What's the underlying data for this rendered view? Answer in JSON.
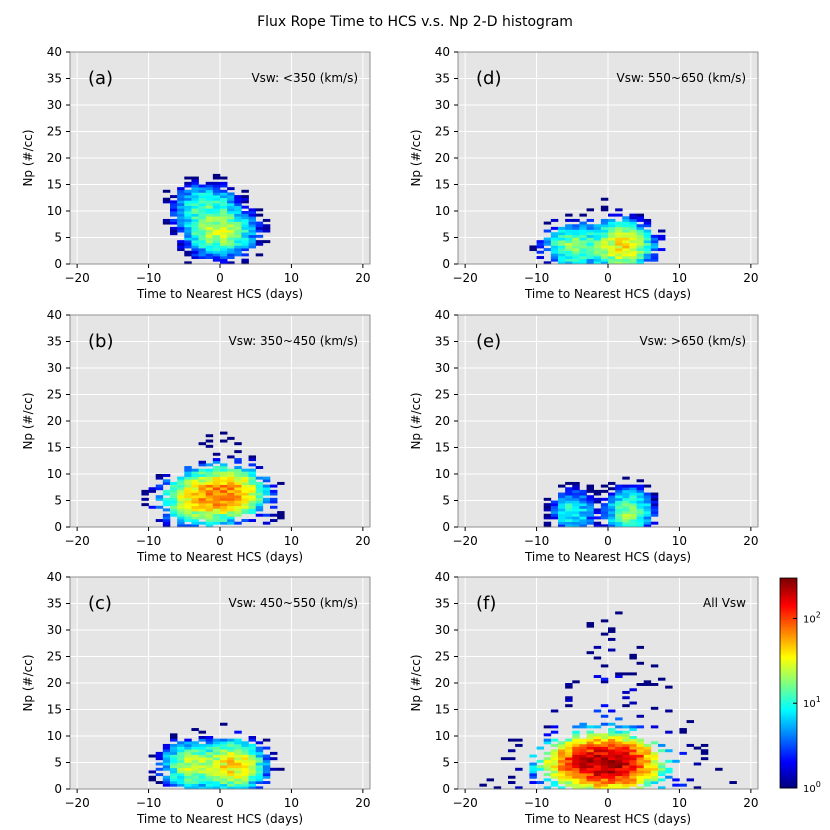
{
  "title": "Flux Rope Time to HCS v.s. Np 2-D histogram",
  "chart_data": [
    {
      "type": "heatmap",
      "panel_label": "(a)",
      "annotation": "Vsw: <350 (km/s)",
      "xlabel": "Time to Nearest HCS (days)",
      "ylabel": "Np (#/cc)",
      "xlim": [
        -21,
        21
      ],
      "ylim": [
        0,
        40
      ],
      "xticks": [
        -20,
        -10,
        0,
        10,
        20
      ],
      "yticks": [
        0,
        5,
        10,
        15,
        20,
        25,
        30,
        35,
        40
      ],
      "grid": true,
      "x_spread_days": 6,
      "hotspots": [
        {
          "x": 0,
          "y": 6,
          "peak_count": 25
        },
        {
          "x": -2,
          "y": 11,
          "peak_count": 12
        }
      ]
    },
    {
      "type": "heatmap",
      "panel_label": "(d)",
      "annotation": "Vsw: 550~650 (km/s)",
      "xlabel": "Time to Nearest HCS (days)",
      "ylabel": "Np (#/cc)",
      "xlim": [
        -21,
        21
      ],
      "ylim": [
        0,
        40
      ],
      "xticks": [
        -20,
        -10,
        0,
        10,
        20
      ],
      "yticks": [
        0,
        5,
        10,
        15,
        20,
        25,
        30,
        35,
        40
      ],
      "grid": true,
      "x_spread_days": 5,
      "hotspots": [
        {
          "x": 2,
          "y": 3.5,
          "peak_count": 40
        },
        {
          "x": -5,
          "y": 3.5,
          "peak_count": 18
        }
      ]
    },
    {
      "type": "heatmap",
      "panel_label": "(b)",
      "annotation": "Vsw: 350~450 (km/s)",
      "xlabel": "Time to Nearest HCS (days)",
      "ylabel": "Np (#/cc)",
      "xlim": [
        -21,
        21
      ],
      "ylim": [
        0,
        40
      ],
      "xticks": [
        -20,
        -10,
        0,
        10,
        20
      ],
      "yticks": [
        0,
        5,
        10,
        15,
        20,
        25,
        30,
        35,
        40
      ],
      "grid": true,
      "x_spread_days": 6,
      "hotspots": [
        {
          "x": 1,
          "y": 6.5,
          "peak_count": 70
        },
        {
          "x": -3,
          "y": 5.5,
          "peak_count": 40
        }
      ]
    },
    {
      "type": "heatmap",
      "panel_label": "(e)",
      "annotation": "Vsw: >650 (km/s)",
      "xlabel": "Time to Nearest HCS (days)",
      "ylabel": "Np (#/cc)",
      "xlim": [
        -21,
        21
      ],
      "ylim": [
        0,
        40
      ],
      "xticks": [
        -20,
        -10,
        0,
        10,
        20
      ],
      "yticks": [
        0,
        5,
        10,
        15,
        20,
        25,
        30,
        35,
        40
      ],
      "grid": true,
      "x_spread_days": 4,
      "hotspots": [
        {
          "x": 3,
          "y": 3,
          "peak_count": 20
        },
        {
          "x": -5,
          "y": 3,
          "peak_count": 10
        }
      ]
    },
    {
      "type": "heatmap",
      "panel_label": "(c)",
      "annotation": "Vsw: 450~550 (km/s)",
      "xlabel": "Time to Nearest HCS (days)",
      "ylabel": "Np (#/cc)",
      "xlim": [
        -21,
        21
      ],
      "ylim": [
        0,
        40
      ],
      "xticks": [
        -20,
        -10,
        0,
        10,
        20
      ],
      "yticks": [
        0,
        5,
        10,
        15,
        20,
        25,
        30,
        35,
        40
      ],
      "grid": true,
      "x_spread_days": 5,
      "hotspots": [
        {
          "x": 2,
          "y": 4.5,
          "peak_count": 45
        },
        {
          "x": -4,
          "y": 4.5,
          "peak_count": 25
        }
      ]
    },
    {
      "type": "heatmap",
      "panel_label": "(f)",
      "annotation": "All Vsw",
      "xlabel": "Time to Nearest HCS (days)",
      "ylabel": "Np (#/cc)",
      "xlim": [
        -21,
        21
      ],
      "ylim": [
        0,
        40
      ],
      "xticks": [
        -20,
        -10,
        0,
        10,
        20
      ],
      "yticks": [
        0,
        5,
        10,
        15,
        20,
        25,
        30,
        35,
        40
      ],
      "grid": true,
      "x_spread_days": 7,
      "hotspots": [
        {
          "x": 1,
          "y": 5,
          "peak_count": 200
        },
        {
          "x": -3,
          "y": 5,
          "peak_count": 120
        }
      ]
    }
  ],
  "colorbar": {
    "scale": "log",
    "min": 1,
    "max": 300,
    "colormap": "jet",
    "ticks": [
      {
        "value": 1,
        "base": "10",
        "exp": "0"
      },
      {
        "value": 10,
        "base": "10",
        "exp": "1"
      },
      {
        "value": 100,
        "base": "10",
        "exp": "2"
      }
    ]
  },
  "colors": {
    "axes_background": "#e5e5e5",
    "grid": "#ffffff"
  }
}
